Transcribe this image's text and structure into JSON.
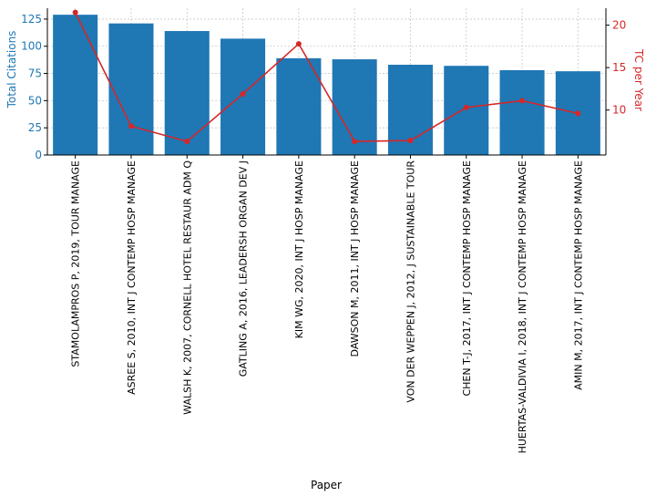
{
  "chart_data": {
    "type": "bar",
    "title": "",
    "xlabel": "Paper",
    "ylabel": "Total Citations",
    "y2label": "TC per Year",
    "colors": {
      "bar": "#1f77b4",
      "line": "#d62728",
      "left_axis": "#1f77b4",
      "right_axis": "#d62728"
    },
    "grid": true,
    "ylim": [
      0,
      135
    ],
    "y2lim": [
      4.7,
      22.0
    ],
    "y_ticks": [
      0,
      25,
      50,
      75,
      100,
      125
    ],
    "y2_ticks": [
      10,
      15,
      20
    ],
    "categories": [
      "STAMOLAMPROS P, 2019, TOUR MANAGE",
      "ASREE S, 2010, INT J CONTEMP HOSP MANAGE",
      "WALSH K, 2007, CORNELL HOTEL RESTAUR ADM Q",
      "GATLING A, 2016, LEADERSH ORGAN DEV J",
      "KIM WG, 2020, INT J HOSP MANAGE",
      "DAWSON M, 2011, INT J HOSP MANAGE",
      "VON DER WEPPEN J, 2012, J SUSTAINABLE TOUR",
      "CHEN T-J, 2017, INT J CONTEMP HOSP MANAGE",
      "HUERTAS-VALDIVIA I, 2018, INT J CONTEMP HOSP MANAGE",
      "AMIN M, 2017, INT J CONTEMP HOSP MANAGE"
    ],
    "series": [
      {
        "name": "Total Citations",
        "kind": "bar",
        "axis": "left",
        "values": [
          129,
          121,
          114,
          107,
          89,
          88,
          83,
          82,
          78,
          77
        ]
      },
      {
        "name": "TC per Year",
        "kind": "line",
        "axis": "right",
        "values": [
          21.5,
          8.1,
          6.3,
          11.9,
          17.8,
          6.3,
          6.4,
          10.3,
          11.1,
          9.6
        ]
      }
    ]
  }
}
